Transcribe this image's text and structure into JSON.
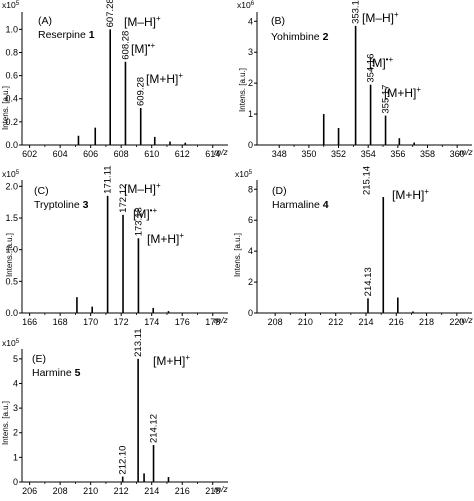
{
  "figure": {
    "panels": [
      {
        "panel_label": "(A)",
        "compound_name": "Reserpine",
        "compound_number": "1",
        "y_axis_label": "Intens. [a.u.]",
        "x_axis_unit": "m/z",
        "y_multiplier": {
          "base": "x10",
          "exponent": "5"
        },
        "ion_labels": [
          "[M–H]",
          "[M]",
          "[M+H]"
        ],
        "ion_superscripts": [
          "+",
          "•+",
          "+"
        ],
        "peak_labels": [
          "607.28",
          "608.28",
          "609.28"
        ]
      },
      {
        "panel_label": "(B)",
        "compound_name": "Yohimbine",
        "compound_number": "2",
        "y_axis_label": "Intens. [a.u.]",
        "x_axis_unit": "m/z",
        "y_multiplier": {
          "base": "x10",
          "exponent": "6"
        },
        "ion_labels": [
          "[M–H]",
          "[M]",
          "[M+H]"
        ],
        "ion_superscripts": [
          "+",
          "•+",
          "+"
        ],
        "peak_labels": [
          "353.15",
          "354.16",
          "355.17"
        ]
      },
      {
        "panel_label": "(C)",
        "compound_name": "Tryptoline",
        "compound_number": "3",
        "y_axis_label": "Intens. [a.u.]",
        "x_axis_unit": "m/z",
        "y_multiplier": {
          "base": "x10",
          "exponent": "5"
        },
        "ion_labels": [
          "[M–H]",
          "[M]",
          "[M+H]"
        ],
        "ion_superscripts": [
          "+",
          "•+",
          "+"
        ],
        "peak_labels": [
          "171.11",
          "172.12",
          "173.13"
        ]
      },
      {
        "panel_label": "(D)",
        "compound_name": "Harmaline",
        "compound_number": "4",
        "y_axis_label": "Intens. [a.u.]",
        "x_axis_unit": "m/z",
        "y_multiplier": {
          "base": "x10",
          "exponent": "5"
        },
        "ion_labels": [
          "[M+H]"
        ],
        "ion_superscripts": [
          "+"
        ],
        "peak_labels": [
          "215.14",
          "214.13"
        ]
      },
      {
        "panel_label": "(E)",
        "compound_name": "Harmine",
        "compound_number": "5",
        "y_axis_label": "Intens. [a.u.]",
        "x_axis_unit": "m/z",
        "y_multiplier": {
          "base": "x10",
          "exponent": "5"
        },
        "ion_labels": [
          "[M+H]"
        ],
        "ion_superscripts": [
          "+"
        ],
        "peak_labels": [
          "213.11",
          "214.12",
          "212.10"
        ]
      }
    ]
  },
  "chart_data": [
    {
      "type": "bar",
      "title": "",
      "xlabel": "m/z",
      "ylabel": "Intens. [a.u.]",
      "y_scale_multiplier": 100000,
      "xlim": [
        601.5,
        615
      ],
      "ylim": [
        0,
        1.15
      ],
      "xticks": [
        602,
        604,
        606,
        608,
        610,
        612,
        614
      ],
      "yticks": [
        0.0,
        0.2,
        0.4,
        0.6,
        0.8,
        1.0
      ],
      "peaks": [
        {
          "mz": 605.2,
          "intensity": 0.08
        },
        {
          "mz": 606.3,
          "intensity": 0.15
        },
        {
          "mz": 607.28,
          "intensity": 1.0,
          "label": "607.28"
        },
        {
          "mz": 608.28,
          "intensity": 0.72,
          "label": "608.28"
        },
        {
          "mz": 609.28,
          "intensity": 0.32,
          "label": "609.28"
        },
        {
          "mz": 610.2,
          "intensity": 0.07
        },
        {
          "mz": 611.2,
          "intensity": 0.03
        },
        {
          "mz": 612.2,
          "intensity": 0.02
        }
      ]
    },
    {
      "type": "bar",
      "title": "",
      "xlabel": "m/z",
      "ylabel": "Intens. [a.u.]",
      "y_scale_multiplier": 1000000,
      "xlim": [
        346.5,
        361
      ],
      "ylim": [
        0,
        4.3
      ],
      "xticks": [
        348,
        350,
        352,
        354,
        356,
        358,
        360
      ],
      "yticks": [
        0,
        1,
        2,
        3,
        4
      ],
      "peaks": [
        {
          "mz": 351.0,
          "intensity": 1.0
        },
        {
          "mz": 352.0,
          "intensity": 0.55
        },
        {
          "mz": 353.15,
          "intensity": 3.85,
          "label": "353.15"
        },
        {
          "mz": 354.16,
          "intensity": 1.95,
          "label": "354.16"
        },
        {
          "mz": 355.17,
          "intensity": 0.95,
          "label": "355.17"
        },
        {
          "mz": 356.1,
          "intensity": 0.22
        },
        {
          "mz": 357.1,
          "intensity": 0.08
        }
      ]
    },
    {
      "type": "bar",
      "title": "",
      "xlabel": "m/z",
      "ylabel": "Intens. [a.u.]",
      "y_scale_multiplier": 100000,
      "xlim": [
        165.5,
        179
      ],
      "ylim": [
        0,
        2.1
      ],
      "xticks": [
        166,
        168,
        170,
        172,
        174,
        176,
        178
      ],
      "yticks": [
        0.0,
        0.5,
        1.0,
        1.5,
        2.0
      ],
      "peaks": [
        {
          "mz": 169.1,
          "intensity": 0.25
        },
        {
          "mz": 170.1,
          "intensity": 0.1
        },
        {
          "mz": 171.11,
          "intensity": 1.85,
          "label": "171.11"
        },
        {
          "mz": 172.12,
          "intensity": 1.55,
          "label": "172.12"
        },
        {
          "mz": 173.13,
          "intensity": 1.18,
          "label": "173.13"
        },
        {
          "mz": 174.1,
          "intensity": 0.08
        },
        {
          "mz": 175.1,
          "intensity": 0.03
        }
      ]
    },
    {
      "type": "bar",
      "title": "",
      "xlabel": "m/z",
      "ylabel": "Intens. [a.u.]",
      "y_scale_multiplier": 100000,
      "xlim": [
        206.8,
        221
      ],
      "ylim": [
        0,
        8.6
      ],
      "xticks": [
        208,
        210,
        212,
        214,
        216,
        218,
        220
      ],
      "yticks": [
        0,
        2,
        4,
        6,
        8
      ],
      "peaks": [
        {
          "mz": 214.13,
          "intensity": 0.95,
          "label": "214.13"
        },
        {
          "mz": 215.14,
          "intensity": 7.5,
          "label": "215.14"
        },
        {
          "mz": 216.1,
          "intensity": 1.0
        },
        {
          "mz": 217.1,
          "intensity": 0.1
        }
      ]
    },
    {
      "type": "bar",
      "title": "",
      "xlabel": "m/z",
      "ylabel": "Intens. [a.u.]",
      "y_scale_multiplier": 100000,
      "xlim": [
        205.5,
        219
      ],
      "ylim": [
        0,
        5.4
      ],
      "xticks": [
        206,
        208,
        210,
        212,
        214,
        216,
        218
      ],
      "yticks": [
        0,
        1,
        2,
        3,
        4,
        5
      ],
      "peaks": [
        {
          "mz": 212.1,
          "intensity": 0.22,
          "label": "212.10"
        },
        {
          "mz": 213.11,
          "intensity": 5.0,
          "label": "213.11"
        },
        {
          "mz": 213.5,
          "intensity": 0.35
        },
        {
          "mz": 214.12,
          "intensity": 1.5,
          "label": "214.12"
        },
        {
          "mz": 215.1,
          "intensity": 0.2
        }
      ]
    }
  ]
}
